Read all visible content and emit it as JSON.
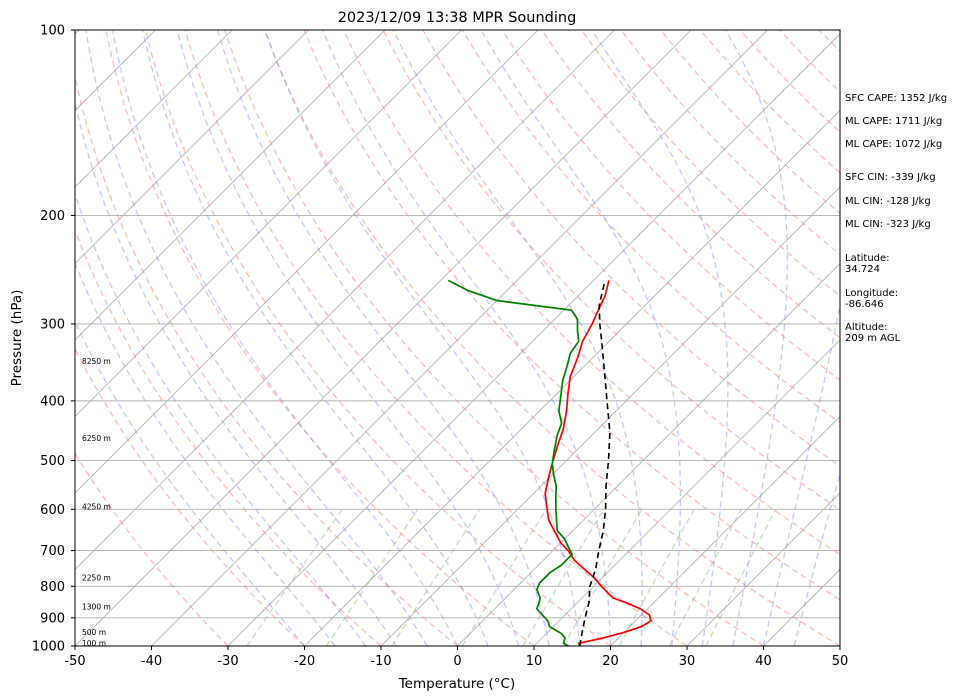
{
  "chart_data": {
    "type": "line",
    "title": "2023/12/09 13:38 MPR Sounding",
    "xlabel": "Temperature (°C)",
    "ylabel": "Pressure (hPa)",
    "xlim": [
      -50,
      50
    ],
    "ylim": [
      1000,
      100
    ],
    "y_scale": "log",
    "skew_t": true,
    "grid": true,
    "x_ticks": [
      "-50",
      "-40",
      "-30",
      "-20",
      "-10",
      "0",
      "10",
      "20",
      "30",
      "40",
      "50"
    ],
    "y_ticks": [
      "100",
      "200",
      "300",
      "400",
      "500",
      "600",
      "700",
      "800",
      "900",
      "1000"
    ],
    "height_labels": [
      {
        "p": 990,
        "label": "100 m"
      },
      {
        "p": 950,
        "label": "500 m"
      },
      {
        "p": 865,
        "label": "1300 m"
      },
      {
        "p": 775,
        "label": "2250 m"
      },
      {
        "p": 595,
        "label": "4250 m"
      },
      {
        "p": 460,
        "label": "6250 m"
      },
      {
        "p": 345,
        "label": "8250 m"
      }
    ],
    "series": [
      {
        "kind": "temperature",
        "color": "#ff0000",
        "points": [
          [
            16.0,
            1000
          ],
          [
            15.5,
            990
          ],
          [
            18.0,
            970
          ],
          [
            20.0,
            950
          ],
          [
            21.5,
            930
          ],
          [
            22.0,
            910
          ],
          [
            21.0,
            890
          ],
          [
            19.0,
            870
          ],
          [
            17.0,
            855
          ],
          [
            14.0,
            835
          ],
          [
            11.0,
            800
          ],
          [
            9.0,
            775
          ],
          [
            6.5,
            750
          ],
          [
            4.0,
            725
          ],
          [
            2.0,
            700
          ],
          [
            0.0,
            680
          ],
          [
            -2.0,
            655
          ],
          [
            -4.5,
            625
          ],
          [
            -6.5,
            595
          ],
          [
            -8.5,
            565
          ],
          [
            -10.0,
            535
          ],
          [
            -11.5,
            505
          ],
          [
            -13.0,
            475
          ],
          [
            -14.5,
            445
          ],
          [
            -16.5,
            415
          ],
          [
            -18.5,
            390
          ],
          [
            -20.5,
            365
          ],
          [
            -22.0,
            340
          ],
          [
            -23.5,
            320
          ],
          [
            -24.5,
            300
          ],
          [
            -25.5,
            285
          ],
          [
            -26.5,
            270
          ],
          [
            -28.0,
            255
          ]
        ]
      },
      {
        "kind": "dewpoint",
        "color": "#008000",
        "points": [
          [
            14.5,
            1000
          ],
          [
            13.5,
            990
          ],
          [
            13.0,
            970
          ],
          [
            12.0,
            955
          ],
          [
            11.0,
            945
          ],
          [
            9.5,
            930
          ],
          [
            8.5,
            910
          ],
          [
            7.0,
            890
          ],
          [
            5.5,
            870
          ],
          [
            5.0,
            850
          ],
          [
            4.5,
            835
          ],
          [
            3.0,
            810
          ],
          [
            2.5,
            790
          ],
          [
            2.5,
            760
          ],
          [
            3.0,
            740
          ],
          [
            3.0,
            710
          ],
          [
            1.5,
            690
          ],
          [
            0.0,
            670
          ],
          [
            -2.0,
            650
          ],
          [
            -3.5,
            625
          ],
          [
            -5.0,
            600
          ],
          [
            -6.5,
            575
          ],
          [
            -8.0,
            550
          ],
          [
            -10.0,
            525
          ],
          [
            -11.5,
            505
          ],
          [
            -13.0,
            480
          ],
          [
            -14.5,
            455
          ],
          [
            -15.5,
            435
          ],
          [
            -17.5,
            415
          ],
          [
            -19.0,
            395
          ],
          [
            -21.0,
            370
          ],
          [
            -22.0,
            355
          ],
          [
            -23.5,
            335
          ],
          [
            -24.0,
            320
          ],
          [
            -25.5,
            308
          ],
          [
            -27.0,
            295
          ],
          [
            -29.0,
            285
          ],
          [
            -40.0,
            275
          ],
          [
            -45.0,
            265
          ],
          [
            -49.0,
            255
          ]
        ]
      },
      {
        "kind": "parcel",
        "color": "#000000",
        "dashed": true,
        "points": [
          [
            16.0,
            1000
          ],
          [
            14.5,
            950
          ],
          [
            13.0,
            900
          ],
          [
            11.5,
            850
          ],
          [
            9.5,
            800
          ],
          [
            8.0,
            750
          ],
          [
            6.0,
            700
          ],
          [
            4.0,
            650
          ],
          [
            1.5,
            600
          ],
          [
            -1.5,
            550
          ],
          [
            -4.5,
            500
          ],
          [
            -8.0,
            450
          ],
          [
            -12.5,
            400
          ],
          [
            -16.5,
            360
          ],
          [
            -21.0,
            320
          ],
          [
            -23.5,
            300
          ],
          [
            -26.0,
            280
          ],
          [
            -28.5,
            255
          ]
        ]
      }
    ],
    "background_lines": {
      "isotherm_color": "#b0b0b0",
      "dry_adiabat_color": "#ff8080",
      "moist_adiabat_color": "#8080ff",
      "mixing_ratio_color": "#80c080"
    }
  },
  "sidebar": {
    "sfc_cape": "SFC CAPE: 1352 J/kg",
    "ml_cape_1": "ML CAPE: 1711 J/kg",
    "ml_cape_2": "ML CAPE: 1072 J/kg",
    "sfc_cin": "SFC CIN: -339 J/kg",
    "ml_cin_1": "ML CIN: -128 J/kg",
    "ml_cin_2": "ML CIN: -323 J/kg",
    "latitude": "Latitude:\n34.724",
    "longitude": "Longitude:\n-86.646",
    "altitude": "Altitude:\n209 m AGL"
  }
}
